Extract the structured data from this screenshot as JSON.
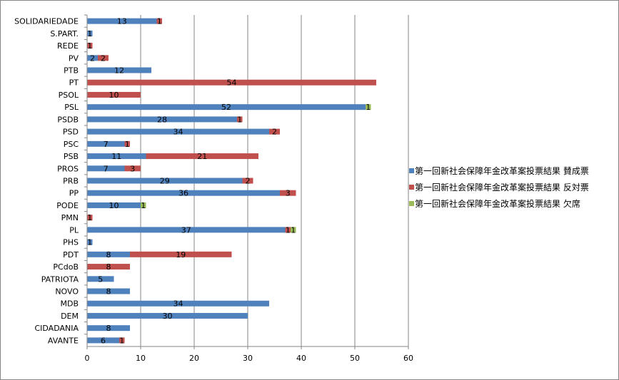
{
  "chart_data": {
    "type": "bar",
    "orientation": "horizontal",
    "stacked": true,
    "categories": [
      "SOLIDARIEDADE",
      "S.PART.",
      "REDE",
      "PV",
      "PTB",
      "PT",
      "PSOL",
      "PSL",
      "PSDB",
      "PSD",
      "PSC",
      "PSB",
      "PROS",
      "PRB",
      "PP",
      "PODE",
      "PMN",
      "PL",
      "PHS",
      "PDT",
      "PCdoB",
      "PATRIOTA",
      "NOVO",
      "MDB",
      "DEM",
      "CIDADANIA",
      "AVANTE"
    ],
    "series": [
      {
        "name": "第一回新社会保障年金改革案投票結果 賛成票",
        "color": "#4F81BD",
        "values": [
          13,
          1,
          0,
          2,
          12,
          0,
          0,
          52,
          28,
          34,
          7,
          11,
          7,
          29,
          36,
          10,
          0,
          37,
          1,
          8,
          0,
          5,
          8,
          34,
          30,
          8,
          6
        ]
      },
      {
        "name": "第一回新社会保障年金改革案投票結果 反対票",
        "color": "#C0504D",
        "values": [
          1,
          0,
          1,
          2,
          0,
          54,
          10,
          0,
          1,
          2,
          1,
          21,
          3,
          2,
          3,
          0,
          1,
          1,
          0,
          19,
          8,
          0,
          0,
          0,
          0,
          0,
          1
        ]
      },
      {
        "name": "第一回新社会保障年金改革案投票結果 欠席",
        "color": "#9BBB59",
        "values": [
          0,
          0,
          0,
          0,
          0,
          0,
          0,
          1,
          0,
          0,
          0,
          0,
          0,
          0,
          0,
          1,
          0,
          1,
          0,
          0,
          0,
          0,
          0,
          0,
          0,
          0,
          0
        ]
      }
    ],
    "xlim": [
      0,
      60
    ],
    "xticks": [
      "0",
      "10",
      "20",
      "30",
      "40",
      "50",
      "60"
    ],
    "grid": true,
    "legend_position": "right"
  }
}
